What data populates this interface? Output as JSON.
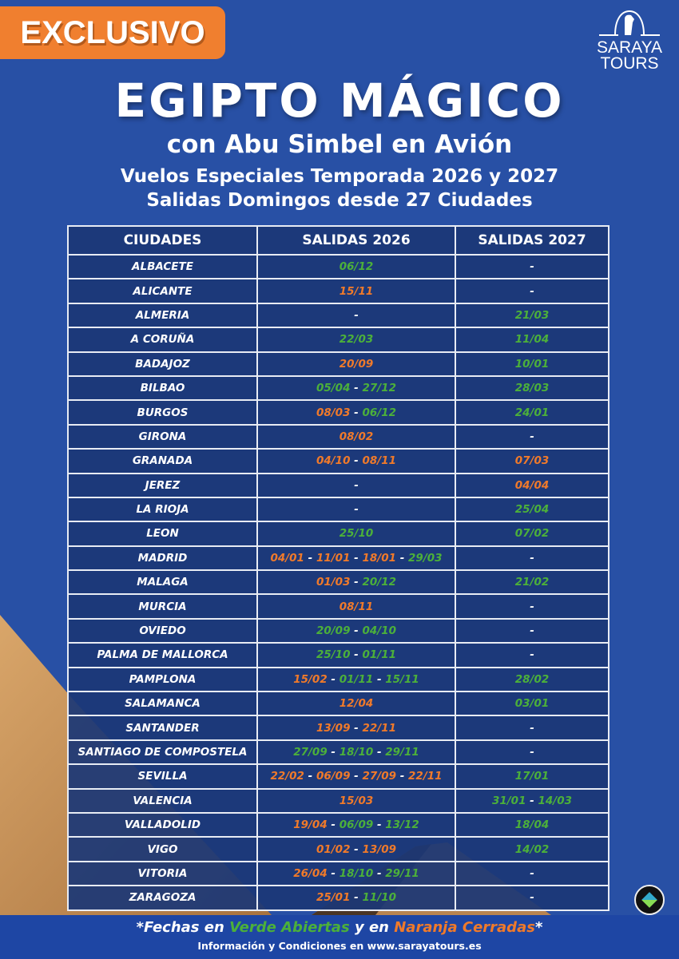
{
  "badge": "EXCLUSIVO",
  "logo": {
    "line1": "SARAYA",
    "line2": "TOURS"
  },
  "title": "EGIPTO MÁGICO",
  "subtitle": "con Abu Simbel en Avión",
  "line3": "Vuelos Especiales Temporada 2026 y 2027",
  "line4": "Salidas Domingos desde 27 Ciudades",
  "colors": {
    "background": "#2850a5",
    "open": "#4cb03a",
    "closed": "#f07a2a",
    "badge": "#f07f2f"
  },
  "table": {
    "headers": [
      "CIUDADES",
      "SALIDAS 2026",
      "SALIDAS 2027"
    ],
    "rows": [
      {
        "city": "ALBACETE",
        "s2026": [
          {
            "t": "06/12",
            "c": "g"
          }
        ],
        "s2027": [
          {
            "t": "-",
            "c": "w"
          }
        ]
      },
      {
        "city": "ALICANTE",
        "s2026": [
          {
            "t": "15/11",
            "c": "o"
          }
        ],
        "s2027": [
          {
            "t": "-",
            "c": "w"
          }
        ]
      },
      {
        "city": "ALMERIA",
        "s2026": [
          {
            "t": "-",
            "c": "w"
          }
        ],
        "s2027": [
          {
            "t": "21/03",
            "c": "g"
          }
        ]
      },
      {
        "city": "A CORUÑA",
        "s2026": [
          {
            "t": "22/03",
            "c": "g"
          }
        ],
        "s2027": [
          {
            "t": "11/04",
            "c": "g"
          }
        ]
      },
      {
        "city": "BADAJOZ",
        "s2026": [
          {
            "t": "20/09",
            "c": "o"
          }
        ],
        "s2027": [
          {
            "t": "10/01",
            "c": "g"
          }
        ]
      },
      {
        "city": "BILBAO",
        "s2026": [
          {
            "t": "05/04",
            "c": "g"
          },
          {
            "t": "27/12",
            "c": "g"
          }
        ],
        "s2027": [
          {
            "t": "28/03",
            "c": "g"
          }
        ]
      },
      {
        "city": "BURGOS",
        "s2026": [
          {
            "t": "08/03",
            "c": "o"
          },
          {
            "t": "06/12",
            "c": "g"
          }
        ],
        "s2027": [
          {
            "t": "24/01",
            "c": "g"
          }
        ]
      },
      {
        "city": "GIRONA",
        "s2026": [
          {
            "t": "08/02",
            "c": "o"
          }
        ],
        "s2027": [
          {
            "t": "-",
            "c": "w"
          }
        ]
      },
      {
        "city": "GRANADA",
        "s2026": [
          {
            "t": "04/10",
            "c": "o"
          },
          {
            "t": "08/11",
            "c": "o"
          }
        ],
        "s2027": [
          {
            "t": "07/03",
            "c": "o"
          }
        ]
      },
      {
        "city": "JEREZ",
        "s2026": [
          {
            "t": "-",
            "c": "w"
          }
        ],
        "s2027": [
          {
            "t": "04/04",
            "c": "o"
          }
        ]
      },
      {
        "city": "LA RIOJA",
        "s2026": [
          {
            "t": "-",
            "c": "w"
          }
        ],
        "s2027": [
          {
            "t": "25/04",
            "c": "g"
          }
        ]
      },
      {
        "city": "LEON",
        "s2026": [
          {
            "t": "25/10",
            "c": "g"
          }
        ],
        "s2027": [
          {
            "t": "07/02",
            "c": "g"
          }
        ]
      },
      {
        "city": "MADRID",
        "s2026": [
          {
            "t": "04/01",
            "c": "o"
          },
          {
            "t": "11/01",
            "c": "o"
          },
          {
            "t": "18/01",
            "c": "o"
          },
          {
            "t": "29/03",
            "c": "g"
          }
        ],
        "s2027": [
          {
            "t": "-",
            "c": "w"
          }
        ]
      },
      {
        "city": "MALAGA",
        "s2026": [
          {
            "t": "01/03",
            "c": "o"
          },
          {
            "t": "20/12",
            "c": "g"
          }
        ],
        "s2027": [
          {
            "t": "21/02",
            "c": "g"
          }
        ]
      },
      {
        "city": "MURCIA",
        "s2026": [
          {
            "t": "08/11",
            "c": "o"
          }
        ],
        "s2027": [
          {
            "t": "-",
            "c": "w"
          }
        ]
      },
      {
        "city": "OVIEDO",
        "s2026": [
          {
            "t": "20/09",
            "c": "g"
          },
          {
            "t": "04/10",
            "c": "g"
          }
        ],
        "s2027": [
          {
            "t": "-",
            "c": "w"
          }
        ]
      },
      {
        "city": "PALMA DE  MALLORCA",
        "s2026": [
          {
            "t": "25/10",
            "c": "g"
          },
          {
            "t": "01/11",
            "c": "g"
          }
        ],
        "s2027": [
          {
            "t": "-",
            "c": "w"
          }
        ]
      },
      {
        "city": "PAMPLONA",
        "s2026": [
          {
            "t": "15/02",
            "c": "o"
          },
          {
            "t": "01/11",
            "c": "g"
          },
          {
            "t": "15/11",
            "c": "g"
          }
        ],
        "s2027": [
          {
            "t": "28/02",
            "c": "g"
          }
        ]
      },
      {
        "city": "SALAMANCA",
        "s2026": [
          {
            "t": "12/04",
            "c": "o"
          }
        ],
        "s2027": [
          {
            "t": "03/01",
            "c": "g"
          }
        ]
      },
      {
        "city": "SANTANDER",
        "s2026": [
          {
            "t": "13/09",
            "c": "o"
          },
          {
            "t": "22/11",
            "c": "o"
          }
        ],
        "s2027": [
          {
            "t": "-",
            "c": "w"
          }
        ]
      },
      {
        "city": "SANTIAGO DE COMPOSTELA",
        "s2026": [
          {
            "t": "27/09",
            "c": "g"
          },
          {
            "t": "18/10",
            "c": "g"
          },
          {
            "t": "29/11",
            "c": "g"
          }
        ],
        "s2027": [
          {
            "t": "-",
            "c": "w"
          }
        ]
      },
      {
        "city": "SEVILLA",
        "s2026": [
          {
            "t": "22/02",
            "c": "o"
          },
          {
            "t": "06/09",
            "c": "o"
          },
          {
            "t": "27/09",
            "c": "o"
          },
          {
            "t": "22/11",
            "c": "o"
          }
        ],
        "s2027": [
          {
            "t": "17/01",
            "c": "g"
          }
        ]
      },
      {
        "city": "VALENCIA",
        "s2026": [
          {
            "t": "15/03",
            "c": "o"
          }
        ],
        "s2027": [
          {
            "t": "31/01",
            "c": "g"
          },
          {
            "t": "14/03",
            "c": "g"
          }
        ]
      },
      {
        "city": "VALLADOLID",
        "s2026": [
          {
            "t": "19/04",
            "c": "o"
          },
          {
            "t": "06/09",
            "c": "g"
          },
          {
            "t": "13/12",
            "c": "g"
          }
        ],
        "s2027": [
          {
            "t": "18/04",
            "c": "g"
          }
        ]
      },
      {
        "city": "VIGO",
        "s2026": [
          {
            "t": "01/02",
            "c": "o"
          },
          {
            "t": "13/09",
            "c": "o"
          }
        ],
        "s2027": [
          {
            "t": "14/02",
            "c": "g"
          }
        ]
      },
      {
        "city": "VITORIA",
        "s2026": [
          {
            "t": "26/04",
            "c": "o"
          },
          {
            "t": "18/10",
            "c": "g"
          },
          {
            "t": "29/11",
            "c": "g"
          }
        ],
        "s2027": [
          {
            "t": "-",
            "c": "w"
          }
        ]
      },
      {
        "city": "ZARAGOZA",
        "s2026": [
          {
            "t": "25/01",
            "c": "o"
          },
          {
            "t": "11/10",
            "c": "g"
          }
        ],
        "s2027": [
          {
            "t": "-",
            "c": "w"
          }
        ]
      }
    ]
  },
  "footer": {
    "legend": {
      "prefix": "*Fechas en ",
      "open": "Verde Abiertas",
      "middle": " y en ",
      "closed": "Naranja Cerradas",
      "suffix": "*"
    },
    "info": "Información y Condiciones en www.sarayatours.es"
  }
}
